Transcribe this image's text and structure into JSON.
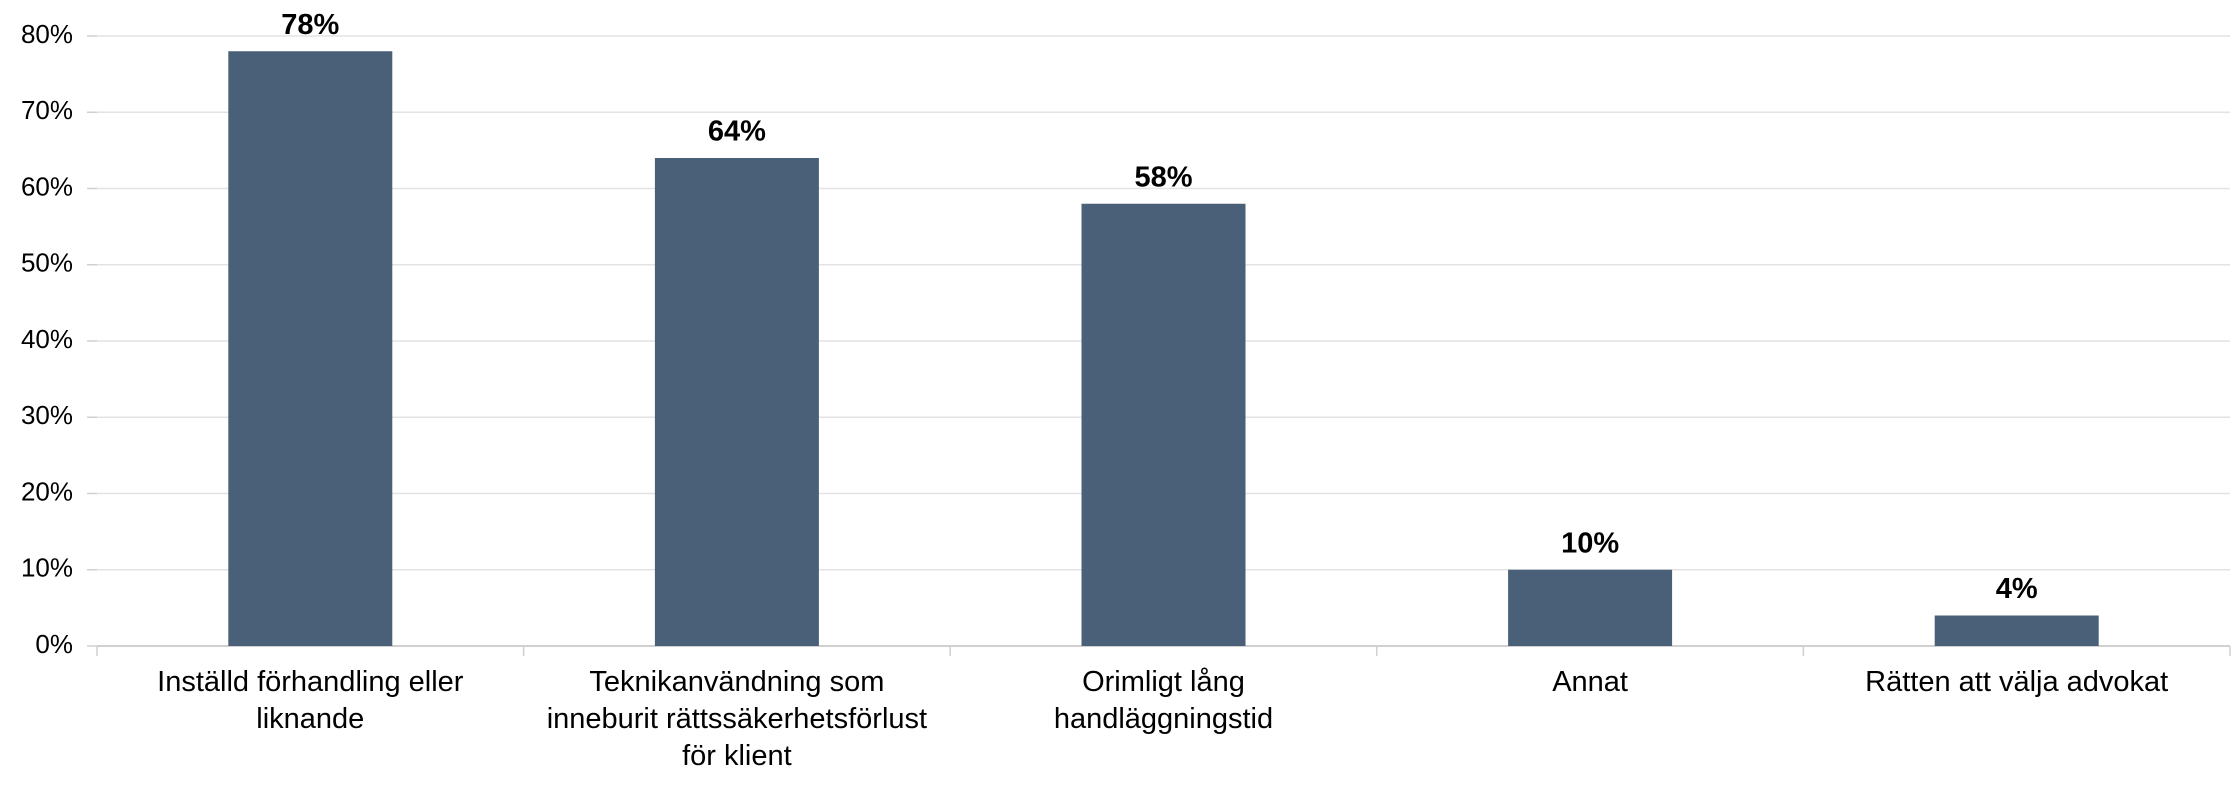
{
  "chart_data": {
    "type": "bar",
    "categories": [
      "Inställd förhandling eller liknande",
      "Teknikanvändning som inneburit rättssäkerhetsförlust för klient",
      "Orimligt lång handläggningstid",
      "Annat",
      "Rätten att välja advokat"
    ],
    "values": [
      78,
      64,
      58,
      10,
      4
    ],
    "value_labels": [
      "78%",
      "64%",
      "58%",
      "10%",
      "4%"
    ],
    "color": "#4a6078",
    "ylim": [
      0,
      80
    ],
    "yticks": [
      {
        "value": 0,
        "label": "0%"
      },
      {
        "value": 10,
        "label": "10%"
      },
      {
        "value": 20,
        "label": "20%"
      },
      {
        "value": 30,
        "label": "30%"
      },
      {
        "value": 40,
        "label": "40%"
      },
      {
        "value": 50,
        "label": "50%"
      },
      {
        "value": 60,
        "label": "60%"
      },
      {
        "value": 70,
        "label": "70%"
      },
      {
        "value": 80,
        "label": "80%"
      }
    ],
    "grid": true
  }
}
